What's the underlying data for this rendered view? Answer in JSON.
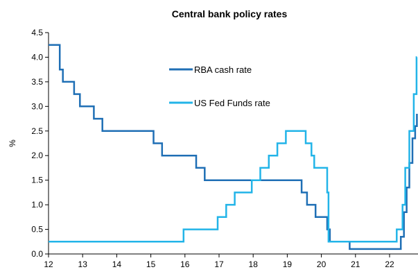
{
  "chart_data": {
    "type": "line",
    "title": "Central bank policy rates",
    "xlabel": "",
    "ylabel": "%",
    "xlim": [
      12,
      22.8
    ],
    "ylim": [
      0,
      4.5
    ],
    "x_ticks": [
      12,
      13,
      14,
      15,
      16,
      17,
      18,
      19,
      20,
      21,
      22
    ],
    "x_tick_labels": [
      "12",
      "13",
      "14",
      "15",
      "16",
      "17",
      "18",
      "19",
      "20",
      "21",
      "22"
    ],
    "y_ticks": [
      0,
      0.5,
      1,
      1.5,
      2,
      2.5,
      3,
      3.5,
      4,
      4.5
    ],
    "y_tick_labels": [
      "0.0",
      "0.5",
      "1.0",
      "1.5",
      "2.0",
      "2.5",
      "3.0",
      "3.5",
      "4.0",
      "4.5"
    ],
    "grid": false,
    "legend_position": "upper-center",
    "series": [
      {
        "name": "RBA cash rate",
        "color": "#1f6fb5",
        "step": true,
        "points": [
          [
            12.0,
            4.25
          ],
          [
            12.33,
            3.75
          ],
          [
            12.42,
            3.5
          ],
          [
            12.75,
            3.25
          ],
          [
            12.92,
            3.0
          ],
          [
            13.33,
            2.75
          ],
          [
            13.58,
            2.5
          ],
          [
            15.08,
            2.25
          ],
          [
            15.33,
            2.0
          ],
          [
            16.33,
            1.75
          ],
          [
            16.58,
            1.5
          ],
          [
            19.42,
            1.25
          ],
          [
            19.58,
            1.0
          ],
          [
            19.83,
            0.75
          ],
          [
            20.17,
            0.5
          ],
          [
            20.25,
            0.25
          ],
          [
            20.83,
            0.1
          ],
          [
            22.33,
            0.35
          ],
          [
            22.42,
            0.85
          ],
          [
            22.5,
            1.35
          ],
          [
            22.58,
            1.85
          ],
          [
            22.67,
            2.35
          ],
          [
            22.75,
            2.6
          ],
          [
            22.8,
            2.85
          ]
        ]
      },
      {
        "name": "US Fed Funds rate",
        "color": "#22b4e8",
        "step": true,
        "points": [
          [
            12.0,
            0.25
          ],
          [
            15.96,
            0.5
          ],
          [
            16.96,
            0.75
          ],
          [
            17.21,
            1.0
          ],
          [
            17.46,
            1.25
          ],
          [
            17.96,
            1.5
          ],
          [
            18.21,
            1.75
          ],
          [
            18.46,
            2.0
          ],
          [
            18.71,
            2.25
          ],
          [
            18.96,
            2.5
          ],
          [
            19.54,
            2.25
          ],
          [
            19.71,
            2.0
          ],
          [
            19.79,
            1.75
          ],
          [
            20.17,
            1.25
          ],
          [
            20.21,
            0.25
          ],
          [
            22.21,
            0.5
          ],
          [
            22.38,
            1.0
          ],
          [
            22.46,
            1.75
          ],
          [
            22.58,
            2.5
          ],
          [
            22.71,
            3.25
          ],
          [
            22.79,
            4.0
          ],
          [
            22.8,
            4.0
          ]
        ]
      }
    ]
  }
}
